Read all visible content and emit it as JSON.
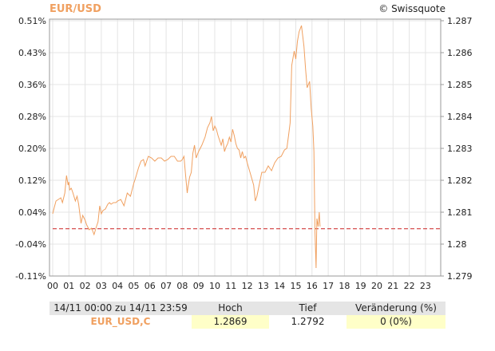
{
  "header": {
    "symbol": "EUR/USD",
    "credit": "© Swissquote"
  },
  "chart_data": {
    "type": "line",
    "title": "EUR/USD",
    "y_left": {
      "ticks": [
        -0.11,
        -0.04,
        0.04,
        0.12,
        0.2,
        0.28,
        0.36,
        0.43,
        0.51
      ],
      "tick_labels": [
        "-0.11%",
        "-0.04%",
        "0.04%",
        "0.12%",
        "0.20%",
        "0.28%",
        "0.36%",
        "0.43%",
        "0.51%"
      ]
    },
    "y_right": {
      "ticks": [
        1.279,
        1.28,
        1.281,
        1.282,
        1.283,
        1.284,
        1.285,
        1.286,
        1.287
      ],
      "tick_labels": [
        "1.279",
        "1.28",
        "1.281",
        "1.282",
        "1.283",
        "1.284",
        "1.285",
        "1.286",
        "1.287"
      ],
      "ylim": [
        1.279,
        1.287
      ]
    },
    "x": {
      "ticks": [
        0,
        1,
        2,
        3,
        4,
        5,
        6,
        7,
        8,
        9,
        10,
        11,
        12,
        13,
        14,
        15,
        16,
        17,
        18,
        19,
        20,
        21,
        22,
        23
      ],
      "tick_labels": [
        "00",
        "01",
        "02",
        "03",
        "04",
        "05",
        "06",
        "07",
        "08",
        "09",
        "10",
        "11",
        "12",
        "13",
        "14",
        "15",
        "16",
        "17",
        "18",
        "19",
        "20",
        "21",
        "22",
        "23"
      ],
      "xlim": [
        0,
        24
      ]
    },
    "grid": true,
    "reference_line": {
      "value": 1.28048,
      "color": "#cc2222",
      "style": "dashed"
    },
    "series": [
      {
        "color": "#f0a060",
        "x": [
          0.0,
          0.1,
          0.2,
          0.35,
          0.5,
          0.6,
          0.75,
          0.85,
          0.95,
          1.0,
          1.05,
          1.15,
          1.25,
          1.4,
          1.5,
          1.6,
          1.75,
          1.85,
          1.9,
          2.0,
          2.1,
          2.25,
          2.4,
          2.55,
          2.7,
          2.8,
          2.9,
          3.0,
          3.1,
          3.25,
          3.4,
          3.5,
          3.6,
          3.75,
          3.9,
          4.0,
          4.2,
          4.4,
          4.6,
          4.8,
          5.0,
          5.1,
          5.3,
          5.45,
          5.6,
          5.7,
          5.8,
          5.9,
          6.1,
          6.3,
          6.5,
          6.7,
          6.9,
          7.1,
          7.3,
          7.5,
          7.7,
          7.9,
          8.0,
          8.1,
          8.2,
          8.3,
          8.35,
          8.45,
          8.55,
          8.65,
          8.75,
          8.85,
          9.0,
          9.2,
          9.4,
          9.55,
          9.7,
          9.8,
          9.9,
          10.0,
          10.1,
          10.2,
          10.3,
          10.4,
          10.5,
          10.6,
          10.7,
          10.8,
          10.9,
          11.0,
          11.1,
          11.2,
          11.3,
          11.4,
          11.5,
          11.6,
          11.7,
          11.8,
          11.9,
          12.0,
          12.2,
          12.4,
          12.5,
          12.6,
          12.7,
          12.9,
          13.1,
          13.3,
          13.5,
          13.7,
          13.9,
          14.1,
          14.3,
          14.45,
          14.55,
          14.65,
          14.75,
          14.9,
          15.0,
          15.1,
          15.2,
          15.35,
          15.5,
          15.6,
          15.7,
          15.85,
          15.95,
          16.05,
          16.12,
          16.18,
          16.25,
          16.3,
          16.38,
          16.45,
          16.5
        ],
        "y": [
          1.28095,
          1.28115,
          1.28135,
          1.2814,
          1.28145,
          1.2813,
          1.2816,
          1.28215,
          1.28185,
          1.28195,
          1.2817,
          1.28175,
          1.2816,
          1.28135,
          1.2815,
          1.28125,
          1.28065,
          1.2809,
          1.28085,
          1.28075,
          1.2806,
          1.28045,
          1.2805,
          1.2803,
          1.28055,
          1.2807,
          1.2812,
          1.28095,
          1.28105,
          1.2811,
          1.28125,
          1.2813,
          1.28125,
          1.2813,
          1.2813,
          1.28135,
          1.2814,
          1.2812,
          1.2816,
          1.2815,
          1.2819,
          1.28205,
          1.2824,
          1.2826,
          1.28265,
          1.28245,
          1.2826,
          1.28275,
          1.2827,
          1.2826,
          1.2827,
          1.2827,
          1.2826,
          1.28265,
          1.28275,
          1.28275,
          1.2826,
          1.2826,
          1.28265,
          1.28275,
          1.28215,
          1.2816,
          1.2818,
          1.2821,
          1.28225,
          1.28285,
          1.2831,
          1.2827,
          1.2829,
          1.2831,
          1.28335,
          1.28365,
          1.2838,
          1.284,
          1.28355,
          1.2837,
          1.2836,
          1.2834,
          1.28325,
          1.2831,
          1.2833,
          1.2829,
          1.28305,
          1.28315,
          1.28335,
          1.2832,
          1.2836,
          1.2834,
          1.28315,
          1.283,
          1.28295,
          1.2827,
          1.2829,
          1.2827,
          1.28275,
          1.28255,
          1.2822,
          1.28185,
          1.28135,
          1.2815,
          1.28175,
          1.28225,
          1.28225,
          1.28245,
          1.2823,
          1.28255,
          1.2827,
          1.28275,
          1.28295,
          1.283,
          1.2834,
          1.2838,
          1.2856,
          1.28605,
          1.2858,
          1.28635,
          1.28665,
          1.28685,
          1.2862,
          1.2855,
          1.2849,
          1.2851,
          1.28425,
          1.2837,
          1.2829,
          1.2804,
          1.27925,
          1.2808,
          1.28055,
          1.281,
          1.28055
        ]
      }
    ]
  },
  "footer": {
    "headers": [
      "14/11 00:00 zu 14/11 23:59",
      "Hoch",
      "Tief",
      "Veränderung (%)"
    ],
    "row": {
      "symbol": "EUR_USD,C",
      "high": "1.2869",
      "low": "1.2792",
      "change": "0 (0%)"
    }
  }
}
